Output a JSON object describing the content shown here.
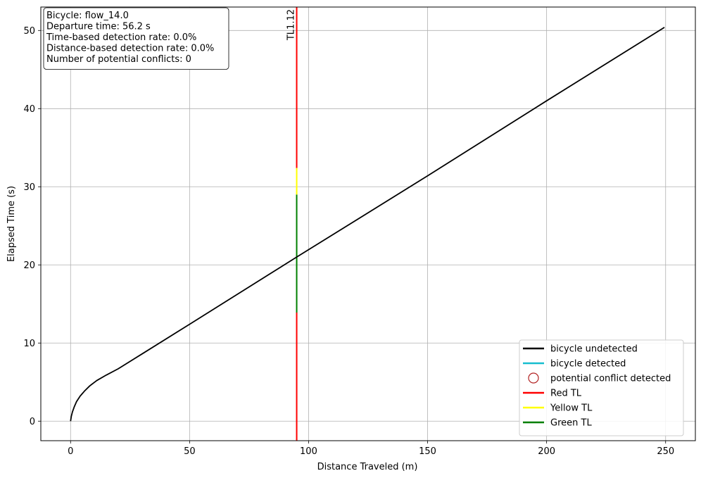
{
  "chart_data": {
    "type": "line",
    "xlabel": "Distance Traveled (m)",
    "ylabel": "Elapsed Time (s)",
    "xlim": [
      -12.5,
      262.5
    ],
    "ylim": [
      -2.5,
      53
    ],
    "xticks": [
      0,
      50,
      100,
      150,
      200,
      250
    ],
    "yticks": [
      0,
      10,
      20,
      30,
      40,
      50
    ],
    "grid": true,
    "info_box": {
      "lines": [
        "Bicycle: flow_14.0",
        "Departure time: 56.2 s",
        "Time-based detection rate: 0.0%",
        "Distance-based detection rate: 0.0%",
        "Number of potential conflicts: 0"
      ],
      "placement": "top-left"
    },
    "legend": {
      "placement": "bottom-right",
      "entries": [
        {
          "label": "bicycle undetected",
          "marker": "line",
          "color": "#000000"
        },
        {
          "label": "bicycle detected",
          "marker": "line",
          "color": "#17becf"
        },
        {
          "label": "potential conflict detected",
          "marker": "circle",
          "color": "#b22222"
        },
        {
          "label": "Red TL",
          "marker": "line",
          "color": "#ff0000"
        },
        {
          "label": "Yellow TL",
          "marker": "line",
          "color": "#ffff00"
        },
        {
          "label": "Green TL",
          "marker": "line",
          "color": "#008000"
        }
      ]
    },
    "series": [
      {
        "name": "bicycle undetected",
        "color": "#000000",
        "points": [
          [
            0,
            0
          ],
          [
            0.3,
            0.6
          ],
          [
            0.8,
            1.2
          ],
          [
            1.5,
            1.8
          ],
          [
            2.5,
            2.5
          ],
          [
            4,
            3.2
          ],
          [
            6,
            3.9
          ],
          [
            8,
            4.5
          ],
          [
            11,
            5.2
          ],
          [
            15,
            5.9
          ],
          [
            20,
            6.7
          ],
          [
            30,
            8.6
          ],
          [
            50,
            12.4
          ],
          [
            95,
            21
          ],
          [
            150,
            31.4
          ],
          [
            200,
            41
          ],
          [
            249.5,
            50.4
          ]
        ]
      }
    ],
    "traffic_lights": [
      {
        "label": "TL1.12",
        "x": 95,
        "phases": [
          {
            "state": "Red TL",
            "color": "#ff0000",
            "from": -2.5,
            "to": 13.9
          },
          {
            "state": "Green TL",
            "color": "#008000",
            "from": 13.9,
            "to": 29.0
          },
          {
            "state": "Yellow TL",
            "color": "#ffff00",
            "from": 29.0,
            "to": 32.4
          },
          {
            "state": "Red TL",
            "color": "#ff0000",
            "from": 32.4,
            "to": 53
          }
        ]
      }
    ]
  }
}
